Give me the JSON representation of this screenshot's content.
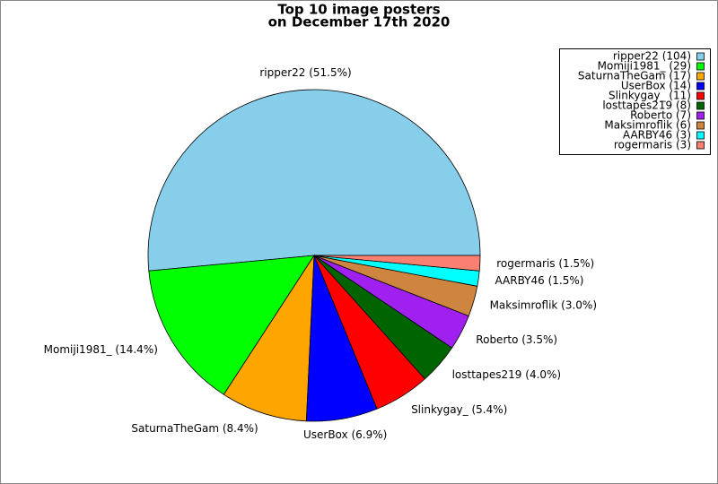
{
  "chart_data": {
    "type": "pie",
    "title": "Top 10 image posters",
    "subtitle": "on December 17th 2020",
    "values": [
      104,
      29,
      17,
      14,
      11,
      8,
      7,
      6,
      3,
      3
    ],
    "slice_labels": [
      "ripper22 (51.5%)",
      "Momiji1981_ (14.4%)",
      "SaturnaTheGam (8.4%)",
      "UserBox (6.9%)",
      "Slinkygay_ (5.4%)",
      "losttapes219 (4.0%)",
      "Roberto (3.5%)",
      "Maksimroflik (3.0%)",
      "AARBY46 (1.5%)",
      "rogermaris (1.5%)"
    ],
    "legend_labels": [
      "ripper22 (104)",
      "Momiji1981_ (29)",
      "SaturnaTheGam (17)",
      "UserBox (14)",
      "Slinkygay_ (11)",
      "losttapes219 (8)",
      "Roberto (7)",
      "Maksimroflik (6)",
      "AARBY46 (3)",
      "rogermaris (3)"
    ],
    "colors": [
      "#87ceeb",
      "#00ff00",
      "#ffa500",
      "#0000ff",
      "#ff0000",
      "#006400",
      "#a020f0",
      "#cd853f",
      "#00ffff",
      "#fa8072"
    ],
    "legend_position": "upper right"
  }
}
